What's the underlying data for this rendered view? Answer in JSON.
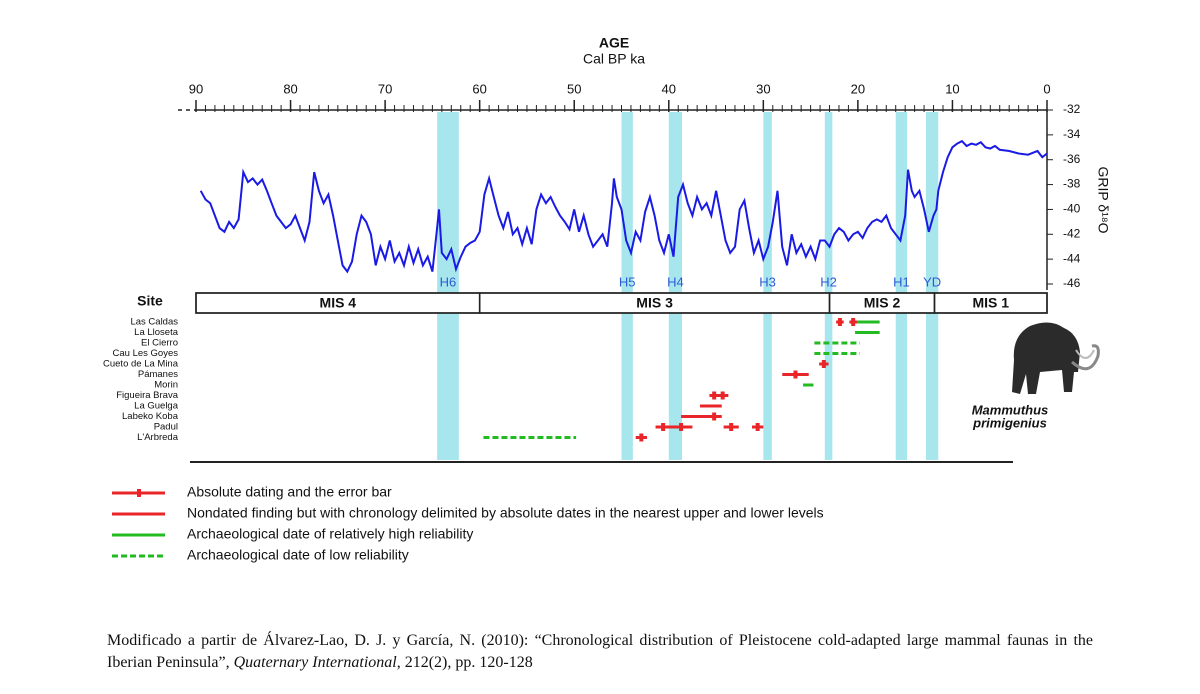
{
  "chart_data": {
    "type": "line",
    "title": "AGE",
    "subtitle": "Cal BP ka",
    "y_label": "GRIP δ¹⁸O",
    "color": "#1a1ae6",
    "xlim": [
      90,
      0
    ],
    "xticks": [
      90,
      80,
      70,
      60,
      50,
      40,
      30,
      20,
      10,
      0
    ],
    "xminor": 1,
    "ylim": [
      -46,
      -32
    ],
    "yticks": [
      -32,
      -34,
      -36,
      -38,
      -40,
      -42,
      -44,
      -46
    ],
    "x": [
      89.5,
      89,
      88.5,
      88,
      87.5,
      87,
      86.5,
      86,
      85.5,
      85,
      84.5,
      84,
      83.5,
      83,
      82.5,
      82,
      81.5,
      81,
      80.5,
      80,
      79.5,
      79,
      78.5,
      78,
      77.5,
      77,
      76.5,
      76,
      75.5,
      75,
      74.5,
      74,
      73.5,
      73,
      72.5,
      72,
      71.5,
      71,
      70.5,
      70,
      69.5,
      69,
      68.5,
      68,
      67.5,
      67,
      66.5,
      66,
      65.5,
      65,
      64.5,
      64.3,
      64,
      63.5,
      63,
      62.5,
      62,
      61.5,
      61,
      60.5,
      60,
      59.5,
      59,
      58.5,
      58,
      57.5,
      57,
      56.5,
      56,
      55.5,
      55,
      54.5,
      54,
      53.5,
      53,
      52.5,
      52,
      51.5,
      51,
      50.5,
      50,
      49.5,
      49,
      48.5,
      48,
      47.5,
      47,
      46.5,
      46,
      45.8,
      45.5,
      45,
      44.5,
      44,
      43.5,
      43,
      42.5,
      42,
      41.5,
      41,
      40.5,
      40,
      39.5,
      39,
      38.5,
      38,
      37.5,
      37,
      36.5,
      36,
      35.5,
      35,
      34.5,
      34,
      33.5,
      33,
      32.5,
      32,
      31.5,
      31,
      30.5,
      30,
      29.5,
      29,
      28.5,
      28,
      27.5,
      27,
      26.5,
      26,
      25.5,
      25,
      24.5,
      24,
      23.5,
      23,
      22.5,
      22,
      21.5,
      21,
      20.5,
      20,
      19.5,
      19,
      18.5,
      18,
      17.5,
      17,
      16.5,
      16,
      15.5,
      15,
      14.7,
      14.3,
      14,
      13.5,
      13,
      12.5,
      12,
      11.7,
      11.5,
      11,
      10.5,
      10,
      9.5,
      9,
      8.5,
      8,
      7.5,
      7,
      6.5,
      6,
      5.5,
      5,
      4,
      3,
      2,
      1,
      0.5,
      0
    ],
    "values": [
      -38.5,
      -39.2,
      -39.5,
      -40.5,
      -41.5,
      -41.8,
      -41,
      -41.5,
      -40.8,
      -37,
      -37.8,
      -37.5,
      -38,
      -37.6,
      -38.5,
      -39.5,
      -40.5,
      -41,
      -41.5,
      -41.2,
      -40.5,
      -41.5,
      -42.5,
      -41,
      -37,
      -38.5,
      -39.5,
      -38.8,
      -40.5,
      -42.5,
      -44.5,
      -45,
      -44.2,
      -42,
      -40.5,
      -41,
      -42,
      -44.5,
      -43,
      -44,
      -42.5,
      -44.2,
      -43.5,
      -44.5,
      -43,
      -44.3,
      -43.2,
      -44.5,
      -43.8,
      -45,
      -41.5,
      -40,
      -43.5,
      -44,
      -43.2,
      -44.8,
      -43.8,
      -43,
      -42.7,
      -42.5,
      -41.8,
      -38.8,
      -37.5,
      -39,
      -40.5,
      -41.5,
      -40.2,
      -42,
      -41.5,
      -42.8,
      -41.5,
      -42.8,
      -40,
      -38.8,
      -39.5,
      -39,
      -39.8,
      -40.5,
      -41,
      -41.6,
      -40,
      -41.8,
      -40.5,
      -42,
      -43,
      -42.5,
      -42,
      -43,
      -39.5,
      -37.5,
      -39,
      -40,
      -42.5,
      -43.5,
      -41.8,
      -42.5,
      -40.2,
      -39,
      -40.5,
      -42.5,
      -43.5,
      -42,
      -43.8,
      -39,
      -38,
      -39.5,
      -40.5,
      -39,
      -40,
      -39.5,
      -40.5,
      -38.5,
      -40.5,
      -42.5,
      -43.5,
      -43,
      -40,
      -39.3,
      -41.5,
      -43.5,
      -42.5,
      -44,
      -43,
      -41,
      -38.5,
      -43,
      -44.5,
      -42,
      -43.5,
      -42.8,
      -43.8,
      -43,
      -44,
      -42.5,
      -42.5,
      -43,
      -42,
      -41.5,
      -41.8,
      -42.5,
      -42,
      -41.8,
      -42.3,
      -41.5,
      -41,
      -40.8,
      -41,
      -40.5,
      -41.5,
      -42,
      -42.5,
      -40.5,
      -36.8,
      -38.5,
      -39,
      -38.5,
      -40,
      -41.8,
      -40.5,
      -40,
      -38.5,
      -37,
      -35.8,
      -35,
      -34.7,
      -34.5,
      -34.9,
      -34.7,
      -34.8,
      -34.6,
      -35,
      -35.1,
      -34.9,
      -35.2,
      -35.3,
      -35.5,
      -35.6,
      -35.3,
      -35.8,
      -35.5
    ],
    "band_color": "#a8e6ee",
    "events": [
      {
        "label": "H6",
        "from": 64.5,
        "to": 62.2
      },
      {
        "label": "H5",
        "from": 45,
        "to": 43.8
      },
      {
        "label": "H4",
        "from": 40,
        "to": 38.6
      },
      {
        "label": "H3",
        "from": 30,
        "to": 29.1
      },
      {
        "label": "H2",
        "from": 23.5,
        "to": 22.7
      },
      {
        "label": "H1",
        "from": 16,
        "to": 14.8
      },
      {
        "label": "YD",
        "from": 12.8,
        "to": 11.5
      }
    ],
    "site_header": "Site",
    "stages": [
      {
        "label": "MIS 4",
        "from": 90,
        "to": 60
      },
      {
        "label": "MIS 3",
        "from": 60,
        "to": 23
      },
      {
        "label": "MIS 2",
        "from": 23,
        "to": 11.9
      },
      {
        "label": "MIS 1",
        "from": 11.9,
        "to": 0
      }
    ],
    "sites": [
      {
        "name": "Las Caldas",
        "dates": [
          {
            "age": 21.9,
            "error": 0.4
          },
          {
            "age": 20.5,
            "error": 0.4
          }
        ],
        "ranges": [
          {
            "type": 2,
            "from": 20.5,
            "to": 17.7
          }
        ]
      },
      {
        "name": "La Lloseta",
        "dates": [],
        "ranges": [
          {
            "type": 2,
            "from": 20.3,
            "to": 17.7
          }
        ]
      },
      {
        "name": "El Cierro",
        "dates": [],
        "ranges": [
          {
            "type": 3,
            "from": 24.6,
            "to": 19.8
          }
        ]
      },
      {
        "name": "Cau Les Goyes",
        "dates": [],
        "ranges": [
          {
            "type": 3,
            "from": 24.6,
            "to": 19.8
          }
        ]
      },
      {
        "name": "Cueto de La Mina",
        "dates": [
          {
            "age": 23.6,
            "error": 0.5
          }
        ],
        "ranges": []
      },
      {
        "name": "Pámanes",
        "dates": [
          {
            "age": 26.6,
            "error": 1.4
          }
        ],
        "ranges": []
      },
      {
        "name": "Morin",
        "dates": [],
        "ranges": [
          {
            "type": 2,
            "from": 25.8,
            "to": 24.7
          }
        ]
      },
      {
        "name": "Figueira Brava",
        "dates": [
          {
            "age": 35.2,
            "error": 0.5
          },
          {
            "age": 34.3,
            "error": 0.6
          }
        ],
        "ranges": []
      },
      {
        "name": "La Guelga",
        "dates": [],
        "ranges": [
          {
            "type": 1,
            "from": 36.7,
            "to": 34.4
          }
        ]
      },
      {
        "name": "Labeko Koba",
        "dates": [
          {
            "age": 35.2,
            "error": 0.8
          }
        ],
        "ranges": [
          {
            "type": 1,
            "from": 38.7,
            "to": 35.5
          }
        ]
      },
      {
        "name": "Padul",
        "dates": [
          {
            "age": 40.6,
            "error": 0.8
          },
          {
            "age": 38.7,
            "error": 1.2
          },
          {
            "age": 33.4,
            "error": 0.8
          },
          {
            "age": 30.6,
            "error": 0.6
          }
        ],
        "ranges": []
      },
      {
        "name": "L'Arbreda",
        "dates": [
          {
            "age": 42.9,
            "error": 0.6
          }
        ],
        "ranges": [
          {
            "type": 3,
            "from": 59.6,
            "to": 49.8
          }
        ]
      }
    ],
    "legend": [
      {
        "label": "Absolute dating and the error bar",
        "color": "#e8262a",
        "style": "error"
      },
      {
        "label": "Nondated finding but with chronology delimited by absolute dates in the nearest upper and lower levels",
        "color": "#e8262a",
        "style": "solid"
      },
      {
        "label": "Archaeological date of relatively high reliability",
        "color": "#22bb22",
        "style": "solid"
      },
      {
        "label": "Archaeological date of low reliability",
        "color": "#22bb22",
        "style": "dashed"
      }
    ],
    "species_label": [
      "Mammuthus",
      "primigenius"
    ]
  },
  "caption": {
    "text": "Modificado a partir de Álvarez-Lao, D. J. y García, N. (2010): “Chronological distribution of Pleistocene cold-adapted large mammal faunas in the Iberian Peninsula”, ",
    "journal": "Quaternary International",
    "rest": ", 212(2), pp. 120-128"
  }
}
